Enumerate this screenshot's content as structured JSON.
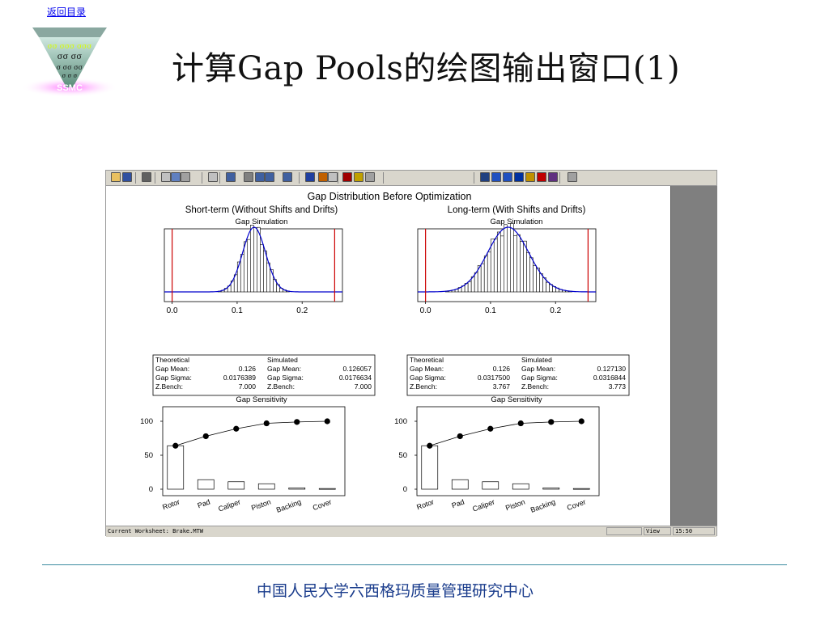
{
  "nav": {
    "back_label": "返回目录"
  },
  "logo": {
    "text": "SSMC",
    "sigma_rows": [
      "σσ σσσ σσσ",
      "σσ σσ",
      "σ σσ σσ",
      "σ σ σ"
    ]
  },
  "slide": {
    "title": "计算Gap Pools的绘图输出窗口(1)"
  },
  "footer": {
    "text": "中国人民大学六西格玛质量管理研究中心"
  },
  "window": {
    "toolbar_icons": [
      "open-icon",
      "save-icon",
      "print-icon",
      "cut-icon",
      "copy-icon",
      "paste-icon",
      "undo-icon",
      "worksheet-icon",
      "session-icon",
      "graph-icon",
      "project-icon",
      "chart-icon",
      "brush-icon",
      "edit-icon",
      "pen-icon",
      "cancel-icon",
      "help-icon",
      "info-icon",
      "prev-icon",
      "layout-icon",
      "layout2-icon",
      "details-icon",
      "tag-icon",
      "graph-info-icon",
      "exec-icon",
      "next-icon"
    ],
    "status": {
      "worksheet": "Current Worksheet: Brake.MTW",
      "mode": "View",
      "time": "15:50"
    }
  },
  "graph": {
    "title": "Gap Distribution Before Optimization",
    "panels": [
      {
        "subtitle": "Short-term (Without Shifts and Drifts)",
        "hist_title": "Gap Simulation",
        "x_ticks": [
          "0.0",
          "0.1",
          "0.2"
        ],
        "stats": {
          "theoretical_header": "Theoretical",
          "simulated_header": "Simulated",
          "rows": [
            {
              "label": "Gap Mean:",
              "theo": "0.126",
              "sim_label": "Gap Mean:",
              "sim": "0.126057"
            },
            {
              "label": "Gap Sigma:",
              "theo": "0.0176389",
              "sim_label": "Gap Sigma:",
              "sim": "0.0176634"
            },
            {
              "label": "Z.Bench:",
              "theo": "7.000",
              "sim_label": "Z.Bench:",
              "sim": "7.000"
            }
          ]
        },
        "sens_title": "Gap Sensitivity",
        "y_ticks": [
          "100",
          "50",
          "0"
        ]
      },
      {
        "subtitle": "Long-term (With Shifts and Drifts)",
        "hist_title": "Gap Simulation",
        "x_ticks": [
          "0.0",
          "0.1",
          "0.2"
        ],
        "stats": {
          "theoretical_header": "Theoretical",
          "simulated_header": "Simulated",
          "rows": [
            {
              "label": "Gap Mean:",
              "theo": "0.126",
              "sim_label": "Gap Mean:",
              "sim": "0.127130"
            },
            {
              "label": "Gap Sigma:",
              "theo": "0.0317500",
              "sim_label": "Gap Sigma:",
              "sim": "0.0316844"
            },
            {
              "label": "Z.Bench:",
              "theo": "3.767",
              "sim_label": "Z.Bench:",
              "sim": "3.773"
            }
          ]
        },
        "sens_title": "Gap Sensitivity",
        "y_ticks": [
          "100",
          "50",
          "0"
        ]
      }
    ]
  },
  "chart_data": [
    {
      "type": "histogram",
      "panel": "short-term",
      "x": [
        0.0,
        0.005,
        0.01,
        0.015,
        0.02,
        0.025,
        0.03,
        0.035,
        0.04,
        0.045,
        0.05,
        0.055,
        0.06,
        0.065,
        0.07,
        0.075,
        0.08,
        0.085,
        0.09,
        0.095,
        0.1,
        0.105,
        0.11,
        0.115,
        0.12,
        0.125,
        0.13,
        0.135,
        0.14,
        0.145,
        0.15,
        0.155,
        0.16,
        0.165,
        0.17,
        0.175,
        0.18,
        0.185,
        0.19,
        0.195,
        0.2,
        0.205,
        0.21,
        0.215,
        0.22,
        0.225,
        0.23,
        0.235,
        0.24,
        0.245,
        0.25
      ],
      "spec_limits": [
        0.0,
        0.25
      ],
      "mean": 0.126057,
      "sigma": 0.0176634,
      "xlim": [
        -0.012,
        0.262
      ],
      "fit_color": "#0000cc",
      "spec_color": "#cc0000"
    },
    {
      "type": "histogram",
      "panel": "long-term",
      "spec_limits": [
        0.0,
        0.25
      ],
      "mean": 0.12713,
      "sigma": 0.0316844,
      "xlim": [
        -0.012,
        0.262
      ],
      "fit_color": "#0000cc",
      "spec_color": "#cc0000"
    },
    {
      "type": "bar",
      "panel": "short-term sensitivity",
      "categories": [
        "Rotor",
        "Pad",
        "Caliper",
        "Piston",
        "Backing",
        "Cover"
      ],
      "values": [
        64,
        14,
        11,
        8,
        2,
        1
      ],
      "cumulative": [
        64,
        78,
        89,
        97,
        99,
        100
      ],
      "ylim": [
        0,
        100
      ]
    },
    {
      "type": "bar",
      "panel": "long-term sensitivity",
      "categories": [
        "Rotor",
        "Pad",
        "Caliper",
        "Piston",
        "Backing",
        "Cover"
      ],
      "values": [
        64,
        14,
        11,
        8,
        2,
        1
      ],
      "cumulative": [
        64,
        78,
        89,
        97,
        99,
        100
      ],
      "ylim": [
        0,
        100
      ]
    }
  ]
}
